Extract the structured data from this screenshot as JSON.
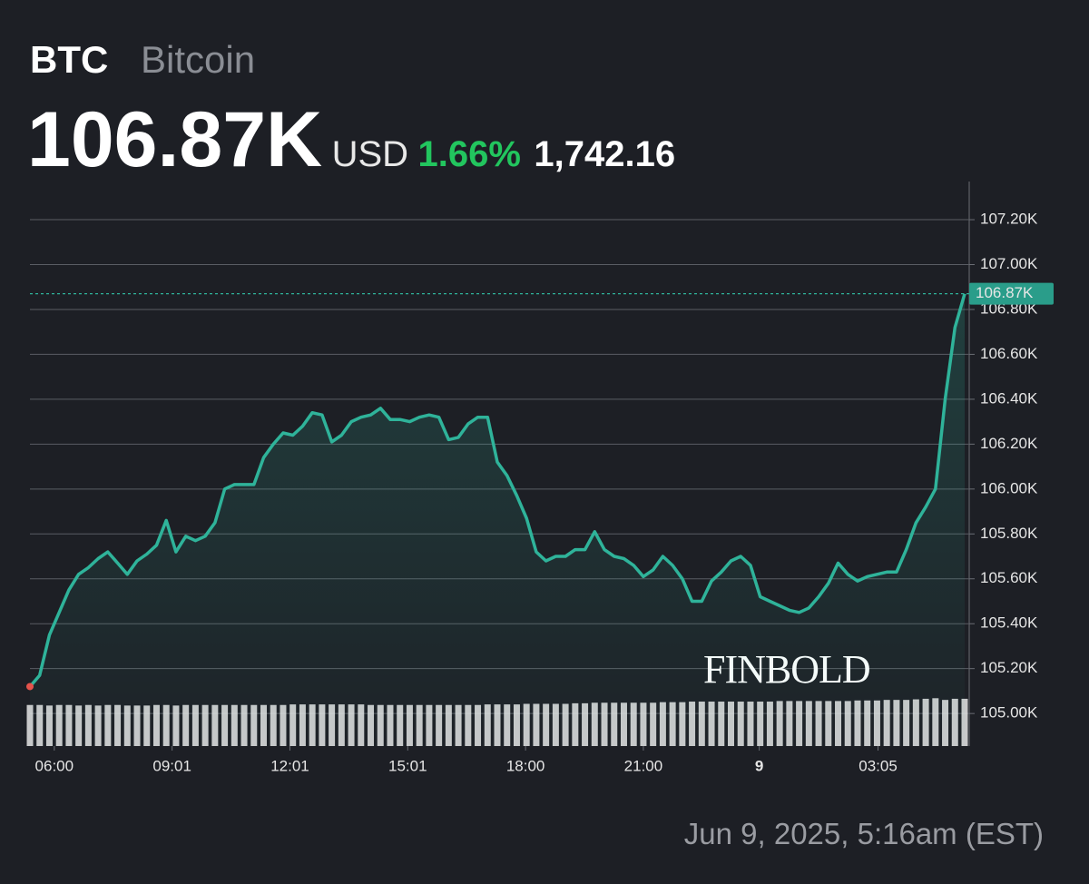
{
  "header": {
    "symbol": "BTC",
    "name": "Bitcoin",
    "price": "106.87K",
    "currency": "USD",
    "change_percent": "1.66%",
    "change_value": "1,742.16"
  },
  "chart_data": {
    "type": "line",
    "color": "#2fb39a",
    "grid": true,
    "values": [
      105120,
      105170,
      105350,
      105450,
      105550,
      105620,
      105650,
      105690,
      105720,
      105670,
      105620,
      105680,
      105710,
      105750,
      105860,
      105720,
      105790,
      105770,
      105790,
      105850,
      106000,
      106020,
      106020,
      106020,
      106140,
      106200,
      106250,
      106240,
      106280,
      106340,
      106330,
      106210,
      106240,
      106300,
      106320,
      106330,
      106360,
      106310,
      106310,
      106300,
      106320,
      106330,
      106320,
      106220,
      106230,
      106290,
      106320,
      106320,
      106120,
      106060,
      105970,
      105870,
      105720,
      105680,
      105700,
      105700,
      105730,
      105730,
      105810,
      105730,
      105700,
      105690,
      105660,
      105610,
      105640,
      105700,
      105660,
      105600,
      105500,
      105500,
      105590,
      105630,
      105680,
      105700,
      105660,
      105520,
      105500,
      105480,
      105460,
      105450,
      105470,
      105520,
      105580,
      105670,
      105620,
      105590,
      105610,
      105620,
      105630,
      105630,
      105730,
      105850,
      105920,
      106000,
      106400,
      106720,
      106870
    ],
    "xlim": [
      0,
      96
    ],
    "xticks": [
      {
        "value": 2.5,
        "label": "06:00"
      },
      {
        "value": 14.6,
        "label": "09:01"
      },
      {
        "value": 26.7,
        "label": "12:01"
      },
      {
        "value": 38.8,
        "label": "15:01"
      },
      {
        "value": 50.9,
        "label": "18:00"
      },
      {
        "value": 63.0,
        "label": "21:00"
      },
      {
        "value": 74.9,
        "label": "9"
      },
      {
        "value": 87.1,
        "label": "03:05"
      }
    ],
    "ylim": [
      104855,
      107370
    ],
    "yticks": [
      {
        "value": 105000,
        "label": "105.00K"
      },
      {
        "value": 105200,
        "label": "105.20K"
      },
      {
        "value": 105400,
        "label": "105.40K"
      },
      {
        "value": 105600,
        "label": "105.60K"
      },
      {
        "value": 105800,
        "label": "105.80K"
      },
      {
        "value": 106000,
        "label": "106.00K"
      },
      {
        "value": 106200,
        "label": "106.20K"
      },
      {
        "value": 106400,
        "label": "106.40K"
      },
      {
        "value": 106600,
        "label": "106.60K"
      },
      {
        "value": 106800,
        "label": "106.80K"
      },
      {
        "value": 107000,
        "label": "107.00K"
      },
      {
        "value": 107200,
        "label": "107.20K"
      }
    ],
    "last_value": {
      "value": 106870,
      "label": "106.87K"
    },
    "volume_values": [
      73,
      73,
      72,
      73,
      73,
      72,
      73,
      72,
      73,
      73,
      72,
      72,
      72,
      73,
      73,
      72,
      73,
      73,
      73,
      73,
      73,
      73,
      73,
      73,
      73,
      73,
      73,
      74,
      74,
      74,
      74,
      74,
      74,
      74,
      74,
      73,
      73,
      73,
      73,
      73,
      73,
      73,
      73,
      73,
      73,
      73,
      73,
      74,
      74,
      74,
      74,
      75,
      75,
      75,
      75,
      75,
      76,
      76,
      77,
      77,
      77,
      77,
      77,
      77,
      77,
      78,
      78,
      78,
      79,
      79,
      79,
      79,
      79,
      79,
      79,
      79,
      79,
      80,
      80,
      80,
      80,
      80,
      80,
      80,
      80,
      81,
      81,
      81,
      82,
      82,
      82,
      83,
      84,
      85,
      82,
      84,
      84
    ],
    "volume_ylim": [
      0,
      100
    ],
    "watermark": "FINBOLD"
  },
  "footer": {
    "timestamp": "Jun 9, 2025, 5:16am (EST)"
  }
}
